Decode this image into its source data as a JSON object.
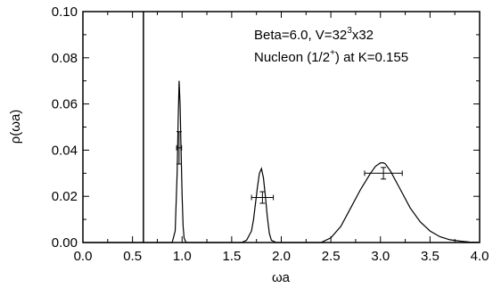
{
  "chart_data": {
    "type": "line",
    "xlabel": "ωa",
    "ylabel": "ρ(ωa)",
    "xlim": [
      0.0,
      4.0
    ],
    "ylim": [
      0.0,
      0.1
    ],
    "x_ticks": [
      "0.0",
      "0.5",
      "1.0",
      "1.5",
      "2.0",
      "2.5",
      "3.0",
      "3.5",
      "4.0"
    ],
    "y_ticks": [
      "0.00",
      "0.02",
      "0.04",
      "0.06",
      "0.08",
      "0.10"
    ],
    "grid": false,
    "annotations": {
      "line1": "Beta=6.0, V=32",
      "line1_sup": "3",
      "line1_tail": "x32",
      "line2": "Nucleon (1/2",
      "line2_sup": "+",
      "line2_tail": ") at K=0.155"
    },
    "vertical_line_x": 0.61,
    "series": [
      {
        "x": [
          0.0,
          0.61,
          0.8,
          0.9,
          0.93,
          0.95,
          0.96,
          0.97,
          0.98,
          0.99,
          1.0,
          1.01,
          1.02,
          1.04,
          1.1,
          1.3,
          1.5,
          1.6,
          1.65,
          1.7,
          1.72,
          1.74,
          1.76,
          1.78,
          1.8,
          1.82,
          1.84,
          1.86,
          1.88,
          1.9,
          1.95,
          2.0,
          2.2,
          2.4,
          2.5,
          2.6,
          2.7,
          2.8,
          2.9,
          2.95,
          3.0,
          3.03,
          3.05,
          3.1,
          3.2,
          3.3,
          3.4,
          3.5,
          3.6,
          3.7,
          3.8,
          3.9,
          4.0
        ],
        "y": [
          0.0,
          0.0,
          0.0,
          0.0,
          0.005,
          0.03,
          0.052,
          0.07,
          0.06,
          0.04,
          0.02,
          0.007,
          0.002,
          0.0,
          0.0,
          0.0,
          0.0,
          0.0,
          0.001,
          0.005,
          0.01,
          0.017,
          0.024,
          0.03,
          0.032,
          0.028,
          0.02,
          0.011,
          0.004,
          0.001,
          0.0,
          0.0,
          0.0,
          0.0,
          0.002,
          0.007,
          0.015,
          0.023,
          0.03,
          0.033,
          0.0345,
          0.0345,
          0.034,
          0.031,
          0.023,
          0.015,
          0.009,
          0.005,
          0.0025,
          0.0012,
          0.0006,
          0.0002,
          0.0001
        ]
      }
    ],
    "error_points": [
      {
        "x": 0.97,
        "y": 0.041,
        "xerr": 0.025,
        "yerr": 0.007
      },
      {
        "x": 1.81,
        "y": 0.0195,
        "xerr": 0.11,
        "yerr": 0.0025
      },
      {
        "x": 3.03,
        "y": 0.03,
        "xerr": 0.19,
        "yerr": 0.0025
      }
    ]
  }
}
